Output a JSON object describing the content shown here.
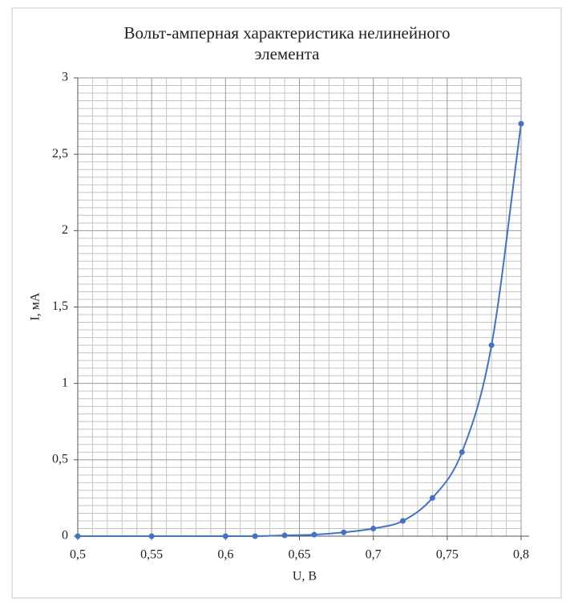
{
  "chart_data": {
    "type": "line",
    "title": "Вольт-амперная характеристика нелинейного элемента",
    "x_label": "U, В",
    "y_label": "I, мА",
    "x": [
      0.5,
      0.55,
      0.6,
      0.62,
      0.64,
      0.66,
      0.68,
      0.7,
      0.72,
      0.74,
      0.76,
      0.78,
      0.8
    ],
    "series": [
      {
        "color": "#4472c4",
        "values": [
          0,
          0,
          0,
          0,
          0.005,
          0.01,
          0.025,
          0.05,
          0.1,
          0.25,
          0.55,
          1.25,
          2.7
        ]
      }
    ],
    "xlim": [
      0.5,
      0.8
    ],
    "xticks": [
      {
        "value": 0.5,
        "label": "0,5"
      },
      {
        "value": 0.55,
        "label": "0,55"
      },
      {
        "value": 0.6,
        "label": "0,6"
      },
      {
        "value": 0.65,
        "label": "0,65"
      },
      {
        "value": 0.7,
        "label": "0,7"
      },
      {
        "value": 0.75,
        "label": "0,75"
      },
      {
        "value": 0.8,
        "label": "0,8"
      }
    ],
    "ylim": [
      0,
      3
    ],
    "yticks": [
      0,
      {
        "value": 0.5,
        "label": "0,5"
      },
      1,
      {
        "value": 1.5,
        "label": "1,5"
      },
      2,
      {
        "value": 2.5,
        "label": "2,5"
      },
      3
    ],
    "grid": true,
    "smooth": true
  }
}
